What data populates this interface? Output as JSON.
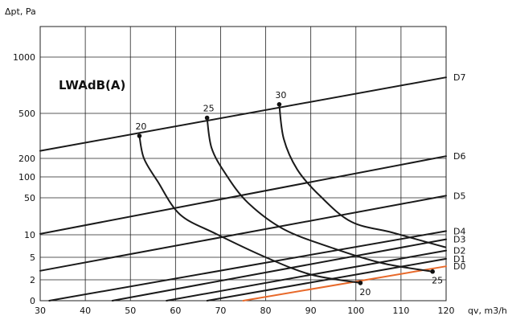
{
  "chart_data": {
    "type": "line",
    "title": "LWAdB(A)",
    "xlabel": "qv, m3/h",
    "ylabel": "Δpt, Pa",
    "xlim": [
      30,
      120
    ],
    "x_ticks": [
      "30",
      "40",
      "50",
      "60",
      "70",
      "80",
      "90",
      "100",
      "110",
      "120"
    ],
    "y_ticks": [
      "0",
      "2",
      "5",
      "10",
      "50",
      "100",
      "200",
      "500",
      "1000"
    ],
    "grid": true,
    "series": [
      {
        "name": "D7",
        "points": [
          [
            30,
            250
          ],
          [
            120,
            820
          ]
        ],
        "color": "#1a1a1a"
      },
      {
        "name": "D6",
        "points": [
          [
            30,
            11
          ],
          [
            120,
            215
          ]
        ],
        "color": "#1a1a1a"
      },
      {
        "name": "D5",
        "points": [
          [
            30,
            3.2
          ],
          [
            120,
            55
          ]
        ],
        "color": "#1a1a1a"
      },
      {
        "name": "D4",
        "points": [
          [
            32,
            0
          ],
          [
            120,
            14
          ]
        ],
        "color": "#1a1a1a"
      },
      {
        "name": "D3",
        "points": [
          [
            46,
            0
          ],
          [
            120,
            9
          ]
        ],
        "color": "#1a1a1a"
      },
      {
        "name": "D2",
        "points": [
          [
            58,
            0
          ],
          [
            120,
            6.5
          ]
        ],
        "color": "#1a1a1a"
      },
      {
        "name": "D1",
        "points": [
          [
            67,
            0
          ],
          [
            120,
            4.8
          ]
        ],
        "color": "#1a1a1a"
      },
      {
        "name": "D0",
        "points": [
          [
            75,
            0
          ],
          [
            120,
            3.8
          ]
        ],
        "color": "#e8692a"
      }
    ],
    "noise_curves": [
      {
        "label": "20",
        "points": [
          [
            52,
            350
          ],
          [
            53,
            200
          ],
          [
            56,
            90
          ],
          [
            61,
            32
          ],
          [
            69,
            11
          ],
          [
            80,
            5
          ],
          [
            90,
            2.7
          ],
          [
            101,
            1.7
          ]
        ]
      },
      {
        "label": "25",
        "points": [
          [
            67,
            470
          ],
          [
            68,
            270
          ],
          [
            71,
            120
          ],
          [
            76,
            45
          ],
          [
            84,
            16
          ],
          [
            95,
            7
          ],
          [
            106,
            4.2
          ],
          [
            117,
            3.1
          ]
        ]
      },
      {
        "label": "30",
        "points": [
          [
            83,
            580
          ],
          [
            84,
            330
          ],
          [
            87,
            140
          ],
          [
            92,
            55
          ],
          [
            99,
            24
          ],
          [
            108,
            12.5
          ],
          [
            117,
            8
          ],
          [
            120,
            7.2
          ]
        ]
      }
    ],
    "point_labels": [
      {
        "text": "20",
        "at": [
          52,
          350
        ],
        "anchor": "above"
      },
      {
        "text": "25",
        "at": [
          67,
          470
        ],
        "anchor": "above"
      },
      {
        "text": "30",
        "at": [
          83,
          580
        ],
        "anchor": "above"
      },
      {
        "text": "20",
        "at": [
          101,
          1.7
        ],
        "anchor": "below"
      },
      {
        "text": "25",
        "at": [
          117,
          3.1
        ],
        "anchor": "below"
      }
    ]
  }
}
